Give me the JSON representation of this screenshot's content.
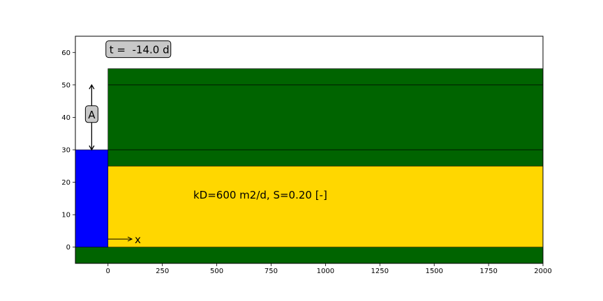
{
  "chart_data": {
    "type": "schematic-cross-section",
    "title": "",
    "xlabel": "",
    "ylabel": "",
    "xlim": [
      -150,
      2000
    ],
    "ylim": [
      -5,
      65
    ],
    "x_ticks": [
      0,
      250,
      500,
      750,
      1000,
      1250,
      1500,
      1750,
      2000
    ],
    "y_ticks": [
      0,
      10,
      20,
      30,
      40,
      50,
      60
    ],
    "grid": false,
    "colors": {
      "aquitard": "#006400",
      "aquifer": "#FFD700",
      "river": "#0000FF",
      "box_fill": "#C8C8C8"
    },
    "regions": [
      {
        "name": "river",
        "x": [
          -150,
          0
        ],
        "y": [
          0,
          30
        ],
        "color": "#0000FF"
      },
      {
        "name": "bottom-layer",
        "x": [
          -150,
          2000
        ],
        "y": [
          -5,
          0
        ],
        "color": "#006400"
      },
      {
        "name": "aquifer",
        "x": [
          0,
          2000
        ],
        "y": [
          0,
          25
        ],
        "color": "#FFD700"
      },
      {
        "name": "top-layer",
        "x": [
          0,
          2000
        ],
        "y": [
          25,
          55
        ],
        "color": "#006400"
      }
    ],
    "lines": [
      {
        "name": "level-50",
        "x": [
          0,
          2000
        ],
        "y": [
          50,
          50
        ]
      },
      {
        "name": "level-30",
        "x": [
          0,
          2000
        ],
        "y": [
          30,
          30
        ]
      }
    ],
    "amplitude_arrow": {
      "x": -75,
      "y_from": 30,
      "y_to": 50,
      "label": "A",
      "label_y": 41
    },
    "time_label": {
      "text": "t =  -14.0 d",
      "x": 0,
      "y": 61
    },
    "aquifer_label": {
      "text": "kD=600 m2/d, S=0.20 [-]",
      "x": 450,
      "y": 16
    },
    "x_arrow": {
      "x_from": 0,
      "x_to": 110,
      "y": 2.5,
      "label": "x"
    }
  }
}
